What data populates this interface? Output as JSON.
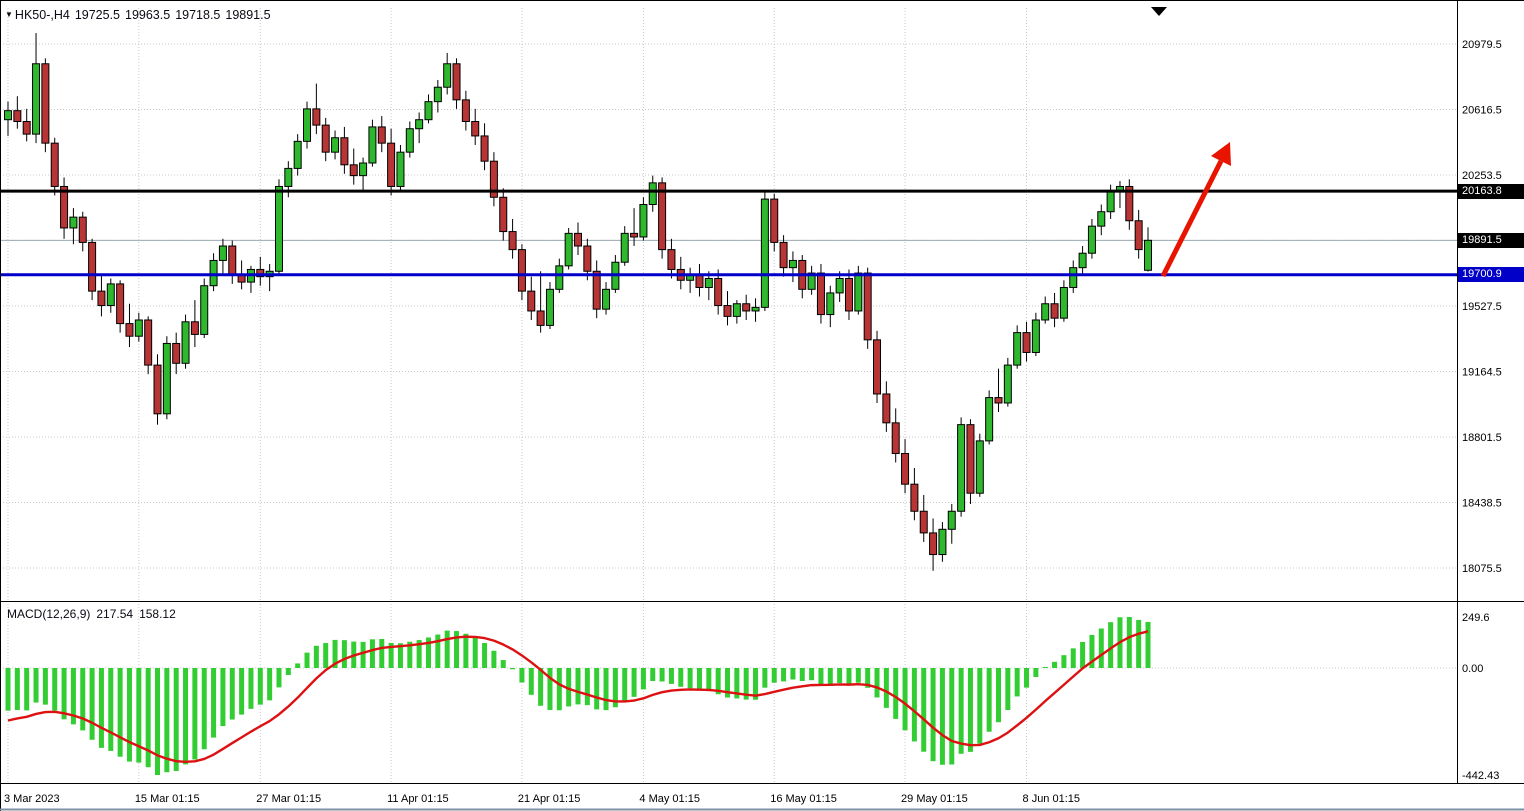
{
  "title": {
    "symbol_period": "HK50-,H4",
    "open": "19725.5",
    "high": "19963.5",
    "low": "19718.5",
    "close": "19891.5"
  },
  "macd_panel": {
    "label": "MACD(12,26,9)",
    "main_value": "217.54",
    "signal_value": "158.12",
    "axis_labels": [
      "249.6",
      "0.00",
      "-442.43"
    ]
  },
  "levels": {
    "resistance": {
      "price": 20163.8,
      "label": "20163.8",
      "bg": "#000000"
    },
    "current": {
      "price": 19891.5,
      "label": "19891.5",
      "bg": "#000000"
    },
    "support": {
      "price": 19700.9,
      "label": "19700.9",
      "bg": "#0000c8"
    }
  },
  "annotations": {
    "arrow_direction": "up-right"
  },
  "colors": {
    "up_candle": "#2eb82e",
    "down_candle": "#b73535",
    "candle_outline": "#000000",
    "histogram": "#32cd32",
    "signal_line": "#dd1111",
    "resistance_line": "#000000",
    "support_line": "#0000c8",
    "current_price_line": "#9aaab4",
    "grid": "#c8c8c8",
    "arrow": "#e81400",
    "axis_text": "#000000"
  },
  "chart_data": {
    "type": "candlestick_with_macd",
    "symbol": "HK50-",
    "timeframe": "H4",
    "price_axis_ticks": [
      20979.5,
      20616.5,
      20253.5,
      19891.5,
      19527.5,
      19164.5,
      18801.5,
      18438.5,
      18075.5
    ],
    "time_axis": {
      "labels": [
        "3 Mar 2023",
        "15 Mar 01:15",
        "27 Mar 01:15",
        "11 Apr 01:15",
        "21 Apr 01:15",
        "4 May 01:15",
        "16 May 01:15",
        "29 May 01:15",
        "8 Jun 01:15"
      ],
      "indices": [
        0,
        14,
        27,
        41,
        55,
        68,
        82,
        96,
        109
      ]
    },
    "candles_ohlc": [
      [
        20560,
        20660,
        20470,
        20610
      ],
      [
        20610,
        20690,
        20510,
        20550
      ],
      [
        20550,
        20620,
        20440,
        20480
      ],
      [
        20480,
        21040,
        20430,
        20870
      ],
      [
        20870,
        20900,
        20380,
        20430
      ],
      [
        20430,
        20460,
        20140,
        20190
      ],
      [
        20190,
        20240,
        19900,
        19960
      ],
      [
        19960,
        20070,
        19870,
        20020
      ],
      [
        20020,
        20050,
        19830,
        19880
      ],
      [
        19880,
        19900,
        19560,
        19610
      ],
      [
        19610,
        19700,
        19470,
        19530
      ],
      [
        19530,
        19680,
        19490,
        19650
      ],
      [
        19650,
        19670,
        19380,
        19430
      ],
      [
        19430,
        19540,
        19300,
        19360
      ],
      [
        19360,
        19490,
        19330,
        19450
      ],
      [
        19450,
        19470,
        19150,
        19200
      ],
      [
        19200,
        19260,
        18870,
        18930
      ],
      [
        18930,
        19360,
        18900,
        19320
      ],
      [
        19320,
        19380,
        19150,
        19210
      ],
      [
        19210,
        19480,
        19180,
        19440
      ],
      [
        19440,
        19560,
        19300,
        19370
      ],
      [
        19370,
        19680,
        19350,
        19640
      ],
      [
        19640,
        19820,
        19610,
        19780
      ],
      [
        19780,
        19900,
        19700,
        19860
      ],
      [
        19860,
        19890,
        19650,
        19700
      ],
      [
        19700,
        19780,
        19620,
        19660
      ],
      [
        19660,
        19750,
        19600,
        19730
      ],
      [
        19730,
        19800,
        19640,
        19690
      ],
      [
        19690,
        19760,
        19610,
        19720
      ],
      [
        19720,
        20230,
        19700,
        20190
      ],
      [
        20190,
        20330,
        20130,
        20290
      ],
      [
        20290,
        20480,
        20250,
        20440
      ],
      [
        20440,
        20660,
        20400,
        20620
      ],
      [
        20620,
        20760,
        20480,
        20530
      ],
      [
        20530,
        20570,
        20330,
        20380
      ],
      [
        20380,
        20500,
        20340,
        20460
      ],
      [
        20460,
        20520,
        20260,
        20310
      ],
      [
        20310,
        20400,
        20200,
        20250
      ],
      [
        20250,
        20350,
        20170,
        20320
      ],
      [
        20320,
        20560,
        20300,
        20520
      ],
      [
        20520,
        20580,
        20380,
        20430
      ],
      [
        20430,
        20510,
        20140,
        20190
      ],
      [
        20190,
        20420,
        20160,
        20380
      ],
      [
        20380,
        20550,
        20350,
        20510
      ],
      [
        20510,
        20600,
        20430,
        20560
      ],
      [
        20560,
        20700,
        20540,
        20660
      ],
      [
        20660,
        20780,
        20600,
        20740
      ],
      [
        20740,
        20930,
        20700,
        20870
      ],
      [
        20870,
        20900,
        20620,
        20670
      ],
      [
        20670,
        20720,
        20500,
        20550
      ],
      [
        20550,
        20620,
        20420,
        20470
      ],
      [
        20470,
        20540,
        20280,
        20330
      ],
      [
        20330,
        20380,
        20080,
        20130
      ],
      [
        20130,
        20180,
        19890,
        19940
      ],
      [
        19940,
        20010,
        19790,
        19840
      ],
      [
        19840,
        19870,
        19560,
        19610
      ],
      [
        19610,
        19690,
        19450,
        19500
      ],
      [
        19500,
        19720,
        19380,
        19420
      ],
      [
        19420,
        19660,
        19400,
        19620
      ],
      [
        19620,
        19790,
        19600,
        19750
      ],
      [
        19750,
        19960,
        19730,
        19930
      ],
      [
        19930,
        19990,
        19810,
        19860
      ],
      [
        19860,
        19900,
        19670,
        19720
      ],
      [
        19720,
        19780,
        19460,
        19510
      ],
      [
        19510,
        19660,
        19480,
        19620
      ],
      [
        19620,
        19810,
        19600,
        19770
      ],
      [
        19770,
        19970,
        19750,
        19930
      ],
      [
        19930,
        20070,
        19860,
        19910
      ],
      [
        19910,
        20130,
        19890,
        20090
      ],
      [
        20090,
        20250,
        20050,
        20210
      ],
      [
        20210,
        20240,
        19790,
        19840
      ],
      [
        19840,
        19900,
        19680,
        19730
      ],
      [
        19730,
        19800,
        19620,
        19670
      ],
      [
        19670,
        19740,
        19600,
        19700
      ],
      [
        19700,
        19760,
        19580,
        19630
      ],
      [
        19630,
        19720,
        19560,
        19680
      ],
      [
        19680,
        19730,
        19480,
        19530
      ],
      [
        19530,
        19610,
        19420,
        19470
      ],
      [
        19470,
        19560,
        19430,
        19540
      ],
      [
        19540,
        19590,
        19450,
        19500
      ],
      [
        19500,
        19570,
        19440,
        19520
      ],
      [
        19520,
        20160,
        19500,
        20120
      ],
      [
        20120,
        20150,
        19830,
        19880
      ],
      [
        19880,
        19920,
        19690,
        19740
      ],
      [
        19740,
        19830,
        19660,
        19780
      ],
      [
        19780,
        19810,
        19570,
        19620
      ],
      [
        19620,
        19750,
        19590,
        19710
      ],
      [
        19710,
        19760,
        19430,
        19480
      ],
      [
        19480,
        19640,
        19410,
        19600
      ],
      [
        19600,
        19720,
        19550,
        19680
      ],
      [
        19680,
        19730,
        19450,
        19500
      ],
      [
        19500,
        19750,
        19480,
        19710
      ],
      [
        19710,
        19740,
        19290,
        19340
      ],
      [
        19340,
        19390,
        18990,
        19040
      ],
      [
        19040,
        19110,
        18830,
        18880
      ],
      [
        18880,
        18960,
        18660,
        18710
      ],
      [
        18710,
        18790,
        18490,
        18540
      ],
      [
        18540,
        18630,
        18340,
        18390
      ],
      [
        18390,
        18480,
        18220,
        18270
      ],
      [
        18270,
        18350,
        18060,
        18150
      ],
      [
        18150,
        18330,
        18110,
        18290
      ],
      [
        18290,
        18430,
        18210,
        18390
      ],
      [
        18390,
        18910,
        18360,
        18870
      ],
      [
        18870,
        18900,
        18430,
        18490
      ],
      [
        18490,
        18820,
        18470,
        18780
      ],
      [
        18780,
        19060,
        18760,
        19020
      ],
      [
        19020,
        19180,
        18940,
        18990
      ],
      [
        18990,
        19240,
        18970,
        19200
      ],
      [
        19200,
        19420,
        19180,
        19380
      ],
      [
        19380,
        19440,
        19220,
        19270
      ],
      [
        19270,
        19490,
        19250,
        19450
      ],
      [
        19450,
        19580,
        19430,
        19540
      ],
      [
        19540,
        19600,
        19410,
        19460
      ],
      [
        19460,
        19670,
        19440,
        19630
      ],
      [
        19630,
        19780,
        19600,
        19740
      ],
      [
        19740,
        19860,
        19700,
        19820
      ],
      [
        19820,
        20010,
        19790,
        19970
      ],
      [
        19970,
        20090,
        19920,
        20050
      ],
      [
        20050,
        20200,
        20010,
        20160
      ],
      [
        20160,
        20220,
        20070,
        20190
      ],
      [
        20190,
        20230,
        19950,
        20000
      ],
      [
        20000,
        20060,
        19790,
        19840
      ],
      [
        19725.5,
        19963.5,
        19718.5,
        19891.5
      ]
    ],
    "macd": {
      "fast": 12,
      "slow": 26,
      "signal": 9,
      "last_main": 217.54,
      "last_signal": 158.12,
      "axis_max": 249.6,
      "axis_min": -442.43
    }
  }
}
